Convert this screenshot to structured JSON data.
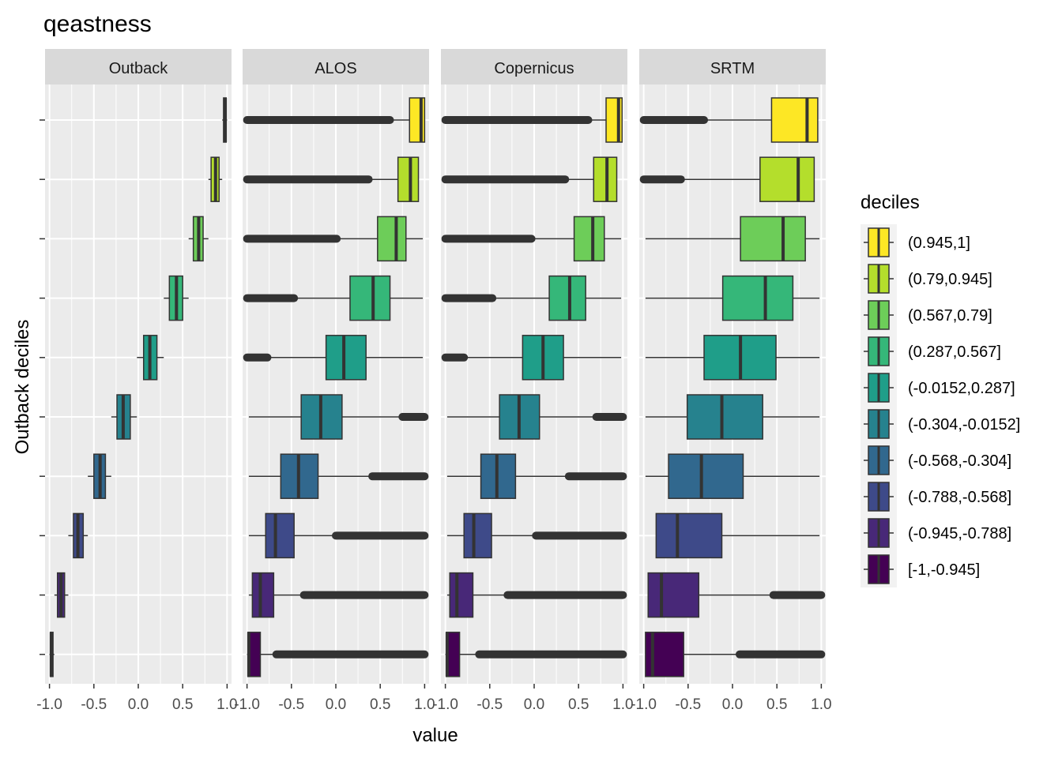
{
  "chart_data": {
    "type": "boxplot",
    "title": "qeastness",
    "xlabel": "value",
    "ylabel": "Outback deciles",
    "xlim": [
      -1.05,
      1.05
    ],
    "x_ticks": [
      "-1.0",
      "-0.5",
      "0.0",
      "0.5",
      "1.0"
    ],
    "x_tick_values": [
      -1.0,
      -0.5,
      0.0,
      0.5,
      1.0
    ],
    "legend": {
      "title": "deciles",
      "position": "right",
      "entries": [
        "(0.945,1]",
        "(0.79,0.945]",
        "(0.567,0.79]",
        "(0.287,0.567]",
        "(-0.0152,0.287]",
        "(-0.304,-0.0152]",
        "(-0.568,-0.304]",
        "(-0.788,-0.568]",
        "(-0.945,-0.788]",
        "[-1,-0.945]"
      ],
      "colors": [
        "#FDE725",
        "#B4DE2C",
        "#6DCD59",
        "#35B779",
        "#1F9E89",
        "#26828E",
        "#31688E",
        "#3E4A89",
        "#482878",
        "#440154"
      ]
    },
    "panels": [
      {
        "name": "Outback",
        "boxes": [
          {
            "decile": "(0.945,1]",
            "whisker_low": 0.945,
            "q1": 0.96,
            "median": 0.98,
            "q3": 0.99,
            "whisker_high": 1.0,
            "outliers_low": null,
            "outliers_high": null
          },
          {
            "decile": "(0.79,0.945]",
            "whisker_low": 0.79,
            "q1": 0.82,
            "median": 0.87,
            "q3": 0.91,
            "whisker_high": 0.945,
            "outliers_low": null,
            "outliers_high": null
          },
          {
            "decile": "(0.567,0.79]",
            "whisker_low": 0.567,
            "q1": 0.62,
            "median": 0.68,
            "q3": 0.73,
            "whisker_high": 0.79,
            "outliers_low": null,
            "outliers_high": null
          },
          {
            "decile": "(0.287,0.567]",
            "whisker_low": 0.287,
            "q1": 0.35,
            "median": 0.43,
            "q3": 0.5,
            "whisker_high": 0.567,
            "outliers_low": null,
            "outliers_high": null
          },
          {
            "decile": "(-0.0152,0.287]",
            "whisker_low": -0.0152,
            "q1": 0.06,
            "median": 0.13,
            "q3": 0.21,
            "whisker_high": 0.287,
            "outliers_low": null,
            "outliers_high": null
          },
          {
            "decile": "(-0.304,-0.0152]",
            "whisker_low": -0.304,
            "q1": -0.24,
            "median": -0.17,
            "q3": -0.09,
            "whisker_high": -0.0152,
            "outliers_low": null,
            "outliers_high": null
          },
          {
            "decile": "(-0.568,-0.304]",
            "whisker_low": -0.568,
            "q1": -0.5,
            "median": -0.43,
            "q3": -0.37,
            "whisker_high": -0.304,
            "outliers_low": null,
            "outliers_high": null
          },
          {
            "decile": "(-0.788,-0.568]",
            "whisker_low": -0.788,
            "q1": -0.73,
            "median": -0.68,
            "q3": -0.62,
            "whisker_high": -0.568,
            "outliers_low": null,
            "outliers_high": null
          },
          {
            "decile": "(-0.945,-0.788]",
            "whisker_low": -0.945,
            "q1": -0.91,
            "median": -0.87,
            "q3": -0.83,
            "whisker_high": -0.788,
            "outliers_low": null,
            "outliers_high": null
          },
          {
            "decile": "[-1,-0.945]",
            "whisker_low": -1.0,
            "q1": -0.99,
            "median": -0.98,
            "q3": -0.96,
            "whisker_high": -0.945,
            "outliers_low": null,
            "outliers_high": null
          }
        ]
      },
      {
        "name": "ALOS",
        "boxes": [
          {
            "decile": "(0.945,1]",
            "whisker_low": 0.63,
            "q1": 0.83,
            "median": 0.96,
            "q3": 1.0,
            "whisker_high": 1.0,
            "outliers_low": [
              -1.0,
              0.61
            ],
            "outliers_high": null
          },
          {
            "decile": "(0.79,0.945]",
            "whisker_low": 0.39,
            "q1": 0.7,
            "median": 0.84,
            "q3": 0.93,
            "whisker_high": 0.93,
            "outliers_low": [
              -1.0,
              0.37
            ],
            "outliers_high": null
          },
          {
            "decile": "(0.567,0.79]",
            "whisker_low": 0.03,
            "q1": 0.47,
            "median": 0.68,
            "q3": 0.79,
            "whisker_high": 0.98,
            "outliers_low": [
              -1.0,
              0.01
            ],
            "outliers_high": null
          },
          {
            "decile": "(0.287,0.567]",
            "whisker_low": -0.45,
            "q1": 0.16,
            "median": 0.42,
            "q3": 0.61,
            "whisker_high": 0.98,
            "outliers_low": [
              -1.0,
              -0.47
            ],
            "outliers_high": null
          },
          {
            "decile": "(-0.0152,0.287]",
            "whisker_low": -0.75,
            "q1": -0.11,
            "median": 0.09,
            "q3": 0.34,
            "whisker_high": 0.98,
            "outliers_low": [
              -1.0,
              -0.77
            ],
            "outliers_high": null
          },
          {
            "decile": "(-0.304,-0.0152]",
            "whisker_low": -0.98,
            "q1": -0.39,
            "median": -0.17,
            "q3": 0.07,
            "whisker_high": 0.73,
            "outliers_low": null,
            "outliers_high": [
              0.75,
              1.0
            ]
          },
          {
            "decile": "(-0.568,-0.304]",
            "whisker_low": -0.98,
            "q1": -0.62,
            "median": -0.42,
            "q3": -0.2,
            "whisker_high": 0.39,
            "outliers_low": null,
            "outliers_high": [
              0.41,
              1.0
            ]
          },
          {
            "decile": "(-0.788,-0.568]",
            "whisker_low": -0.98,
            "q1": -0.79,
            "median": -0.68,
            "q3": -0.47,
            "whisker_high": -0.02,
            "outliers_low": null,
            "outliers_high": [
              0.0,
              1.0
            ]
          },
          {
            "decile": "(-0.945,-0.788]",
            "whisker_low": -0.98,
            "q1": -0.94,
            "median": -0.85,
            "q3": -0.7,
            "whisker_high": -0.38,
            "outliers_low": null,
            "outliers_high": [
              -0.36,
              1.0
            ]
          },
          {
            "decile": "[-1,-0.945]",
            "whisker_low": -1.0,
            "q1": -0.99,
            "median": -0.98,
            "q3": -0.85,
            "whisker_high": -0.69,
            "outliers_low": null,
            "outliers_high": [
              -0.67,
              1.0
            ]
          }
        ]
      },
      {
        "name": "Copernicus",
        "boxes": [
          {
            "decile": "(0.945,1]",
            "whisker_low": 0.63,
            "q1": 0.81,
            "median": 0.95,
            "q3": 0.99,
            "whisker_high": 0.99,
            "outliers_low": [
              -1.0,
              0.61
            ],
            "outliers_high": null
          },
          {
            "decile": "(0.79,0.945]",
            "whisker_low": 0.37,
            "q1": 0.67,
            "median": 0.82,
            "q3": 0.93,
            "whisker_high": 0.93,
            "outliers_low": [
              -1.0,
              0.35
            ],
            "outliers_high": null
          },
          {
            "decile": "(0.567,0.79]",
            "whisker_low": -0.01,
            "q1": 0.45,
            "median": 0.66,
            "q3": 0.79,
            "whisker_high": 0.98,
            "outliers_low": [
              -1.0,
              -0.03
            ],
            "outliers_high": null
          },
          {
            "decile": "(0.287,0.567]",
            "whisker_low": -0.45,
            "q1": 0.17,
            "median": 0.4,
            "q3": 0.58,
            "whisker_high": 0.98,
            "outliers_low": [
              -1.0,
              -0.47
            ],
            "outliers_high": null
          },
          {
            "decile": "(-0.0152,0.287]",
            "whisker_low": -0.77,
            "q1": -0.13,
            "median": 0.1,
            "q3": 0.33,
            "whisker_high": 0.98,
            "outliers_low": [
              -1.0,
              -0.79
            ],
            "outliers_high": null
          },
          {
            "decile": "(-0.304,-0.0152]",
            "whisker_low": -0.98,
            "q1": -0.39,
            "median": -0.17,
            "q3": 0.06,
            "whisker_high": 0.68,
            "outliers_low": null,
            "outliers_high": [
              0.7,
              1.0
            ]
          },
          {
            "decile": "(-0.568,-0.304]",
            "whisker_low": -0.98,
            "q1": -0.6,
            "median": -0.42,
            "q3": -0.21,
            "whisker_high": 0.37,
            "outliers_low": null,
            "outliers_high": [
              0.39,
              1.0
            ]
          },
          {
            "decile": "(-0.788,-0.568]",
            "whisker_low": -0.98,
            "q1": -0.79,
            "median": -0.68,
            "q3": -0.48,
            "whisker_high": 0.0,
            "outliers_low": null,
            "outliers_high": [
              0.02,
              1.0
            ]
          },
          {
            "decile": "(-0.945,-0.788]",
            "whisker_low": -0.98,
            "q1": -0.95,
            "median": -0.87,
            "q3": -0.69,
            "whisker_high": -0.32,
            "outliers_low": null,
            "outliers_high": [
              -0.3,
              1.0
            ]
          },
          {
            "decile": "[-1,-0.945]",
            "whisker_low": -1.0,
            "q1": -0.99,
            "median": -0.98,
            "q3": -0.84,
            "whisker_high": -0.64,
            "outliers_low": null,
            "outliers_high": [
              -0.62,
              1.0
            ]
          }
        ]
      },
      {
        "name": "SRTM",
        "boxes": [
          {
            "decile": "(0.945,1]",
            "whisker_low": -0.3,
            "q1": 0.44,
            "median": 0.84,
            "q3": 0.96,
            "whisker_high": 0.96,
            "outliers_low": [
              -1.0,
              -0.32
            ],
            "outliers_high": null
          },
          {
            "decile": "(0.79,0.945]",
            "whisker_low": -0.56,
            "q1": 0.31,
            "median": 0.74,
            "q3": 0.92,
            "whisker_high": 0.92,
            "outliers_low": [
              -1.0,
              -0.58
            ],
            "outliers_high": null
          },
          {
            "decile": "(0.567,0.79]",
            "whisker_low": -0.98,
            "q1": 0.09,
            "median": 0.57,
            "q3": 0.82,
            "whisker_high": 0.98,
            "outliers_low": null,
            "outliers_high": null
          },
          {
            "decile": "(0.287,0.567]",
            "whisker_low": -0.98,
            "q1": -0.11,
            "median": 0.37,
            "q3": 0.68,
            "whisker_high": 0.98,
            "outliers_low": null,
            "outliers_high": null
          },
          {
            "decile": "(-0.0152,0.287]",
            "whisker_low": -0.98,
            "q1": -0.32,
            "median": 0.09,
            "q3": 0.49,
            "whisker_high": 0.98,
            "outliers_low": null,
            "outliers_high": null
          },
          {
            "decile": "(-0.304,-0.0152]",
            "whisker_low": -0.98,
            "q1": -0.51,
            "median": -0.12,
            "q3": 0.34,
            "whisker_high": 0.98,
            "outliers_low": null,
            "outliers_high": null
          },
          {
            "decile": "(-0.568,-0.304]",
            "whisker_low": -0.98,
            "q1": -0.72,
            "median": -0.35,
            "q3": 0.12,
            "whisker_high": 0.98,
            "outliers_low": null,
            "outliers_high": null
          },
          {
            "decile": "(-0.788,-0.568]",
            "whisker_low": -0.86,
            "q1": -0.86,
            "median": -0.62,
            "q3": -0.12,
            "whisker_high": 0.98,
            "outliers_low": null,
            "outliers_high": null
          },
          {
            "decile": "(-0.945,-0.788]",
            "whisker_low": -0.95,
            "q1": -0.95,
            "median": -0.8,
            "q3": -0.38,
            "whisker_high": 0.44,
            "outliers_low": null,
            "outliers_high": [
              0.46,
              1.0
            ]
          },
          {
            "decile": "[-1,-0.945]",
            "whisker_low": -0.98,
            "q1": -0.98,
            "median": -0.9,
            "q3": -0.55,
            "whisker_high": 0.06,
            "outliers_low": null,
            "outliers_high": [
              0.08,
              1.0
            ]
          }
        ]
      }
    ]
  }
}
